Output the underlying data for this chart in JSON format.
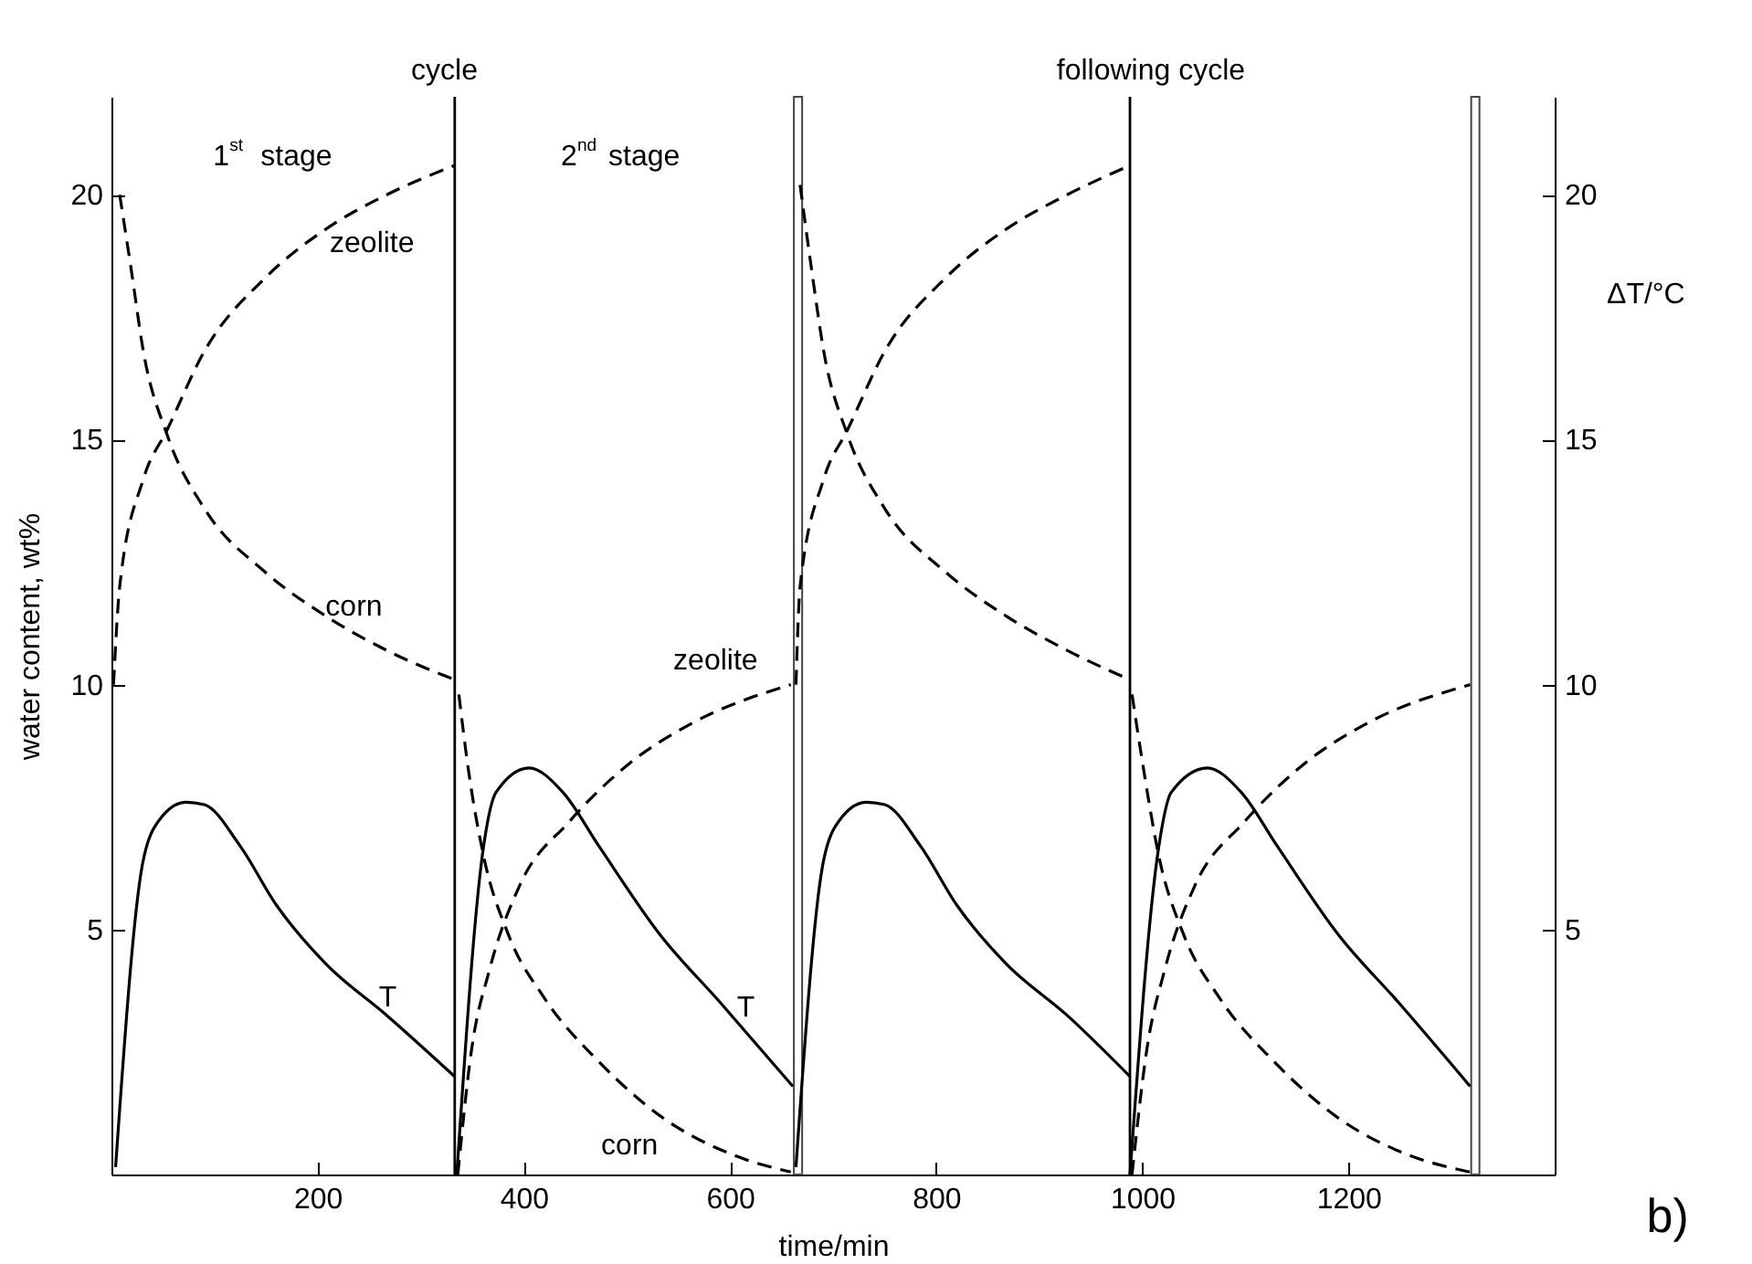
{
  "chart_data": {
    "type": "line",
    "xlabel": "time/min",
    "ylabel": "water content, wt%",
    "y2label": "ΔT/°C",
    "xlim": [
      0,
      1400
    ],
    "xticks": [
      200,
      400,
      600,
      800,
      1000,
      1200
    ],
    "ylim": [
      0,
      22
    ],
    "yticks": [
      5,
      10,
      15,
      20
    ],
    "y2lim": [
      0,
      22
    ],
    "y2ticks": [
      5,
      10,
      15,
      20
    ],
    "series": [
      {
        "color": "#000000",
        "line_style": "dashed",
        "x": [
          2,
          8,
          31,
          54,
          90,
          149,
          208,
          267,
          333
        ],
        "values": [
          10,
          12.0,
          14.2,
          15.2,
          16.8,
          18.3,
          19.3,
          20.0,
          20.6
        ]
      },
      {
        "color": "#000000",
        "line_style": "dashed",
        "x": [
          8,
          19,
          31,
          54,
          90,
          149,
          208,
          267,
          333
        ],
        "values": [
          20,
          18.5,
          16.8,
          15.1,
          13.6,
          12.3,
          11.4,
          10.7,
          10.1
        ]
      },
      {
        "color": "#000000",
        "line_style": "solid",
        "axis": "y2",
        "x": [
          4,
          29,
          42,
          72,
          90,
          125,
          160,
          208,
          267,
          333
        ],
        "values": [
          0.15,
          6.2,
          7.1,
          7.6,
          7.55,
          6.7,
          5.5,
          4.3,
          3.25,
          2.0
        ]
      },
      {
        "color": "#000000",
        "line_style": "dashed",
        "x": [
          337,
          346,
          361,
          385,
          420,
          473,
          532,
          603,
          659
        ],
        "values": [
          9.8,
          8.3,
          6.5,
          4.9,
          3.6,
          2.3,
          1.2,
          0.4,
          0.05
        ]
      },
      {
        "color": "#000000",
        "line_style": "dashed",
        "x": [
          336,
          349,
          367,
          396,
          444,
          503,
          562,
          659
        ],
        "values": [
          0,
          2.5,
          4.2,
          5.9,
          7.2,
          8.4,
          9.2,
          10.0
        ]
      },
      {
        "color": "#000000",
        "line_style": "solid",
        "axis": "y2",
        "x": [
          335,
          361,
          373,
          405,
          438,
          473,
          532,
          591,
          661
        ],
        "values": [
          0,
          6.7,
          7.8,
          8.3,
          7.8,
          6.7,
          4.9,
          3.5,
          1.8
        ]
      },
      {
        "color": "#000000",
        "line_style": "dashed",
        "x": [
          664,
          668,
          691,
          714,
          750,
          809,
          868,
          927,
          988
        ],
        "values": [
          10,
          12.0,
          14.2,
          15.2,
          16.8,
          18.3,
          19.3,
          20.0,
          20.6
        ]
      },
      {
        "color": "#000000",
        "line_style": "dashed",
        "x": [
          668,
          679,
          691,
          714,
          750,
          809,
          868,
          927,
          988
        ],
        "values": [
          20.2,
          18.5,
          16.8,
          15.1,
          13.6,
          12.3,
          11.4,
          10.7,
          10.1
        ]
      },
      {
        "color": "#000000",
        "line_style": "solid",
        "axis": "y2",
        "x": [
          664,
          689,
          702,
          732,
          750,
          785,
          820,
          868,
          927,
          988
        ],
        "values": [
          0.15,
          6.2,
          7.1,
          7.6,
          7.55,
          6.7,
          5.5,
          4.3,
          3.25,
          2.0
        ]
      },
      {
        "color": "#000000",
        "line_style": "dashed",
        "x": [
          990,
          1001,
          1016,
          1040,
          1075,
          1128,
          1187,
          1258,
          1318
        ],
        "values": [
          9.8,
          8.3,
          6.5,
          4.9,
          3.6,
          2.3,
          1.2,
          0.4,
          0.05
        ]
      },
      {
        "color": "#000000",
        "line_style": "dashed",
        "x": [
          990,
          1004,
          1022,
          1051,
          1099,
          1158,
          1217,
          1318
        ],
        "values": [
          0,
          2.5,
          4.2,
          5.9,
          7.2,
          8.4,
          9.2,
          10.0
        ]
      },
      {
        "color": "#000000",
        "line_style": "solid",
        "axis": "y2",
        "x": [
          988,
          1016,
          1028,
          1063,
          1096,
          1131,
          1190,
          1249,
          1318
        ],
        "values": [
          0,
          6.7,
          7.8,
          8.3,
          7.8,
          6.7,
          4.9,
          3.5,
          1.8
        ]
      }
    ],
    "ref_lines": [
      {
        "axis": "x",
        "value": 333
      },
      {
        "axis": "x",
        "value": 988
      }
    ],
    "bands": [
      {
        "axis": "x",
        "from": 662,
        "to": 670
      },
      {
        "axis": "x",
        "from": 1319,
        "to": 1327
      }
    ],
    "annotations": [
      "cycle",
      "following cycle",
      "1$^{st}$ stage",
      "2$^{nd}$ stage",
      "zeolite",
      "corn",
      "T",
      "zeolite",
      "corn",
      "T",
      "b)"
    ]
  }
}
